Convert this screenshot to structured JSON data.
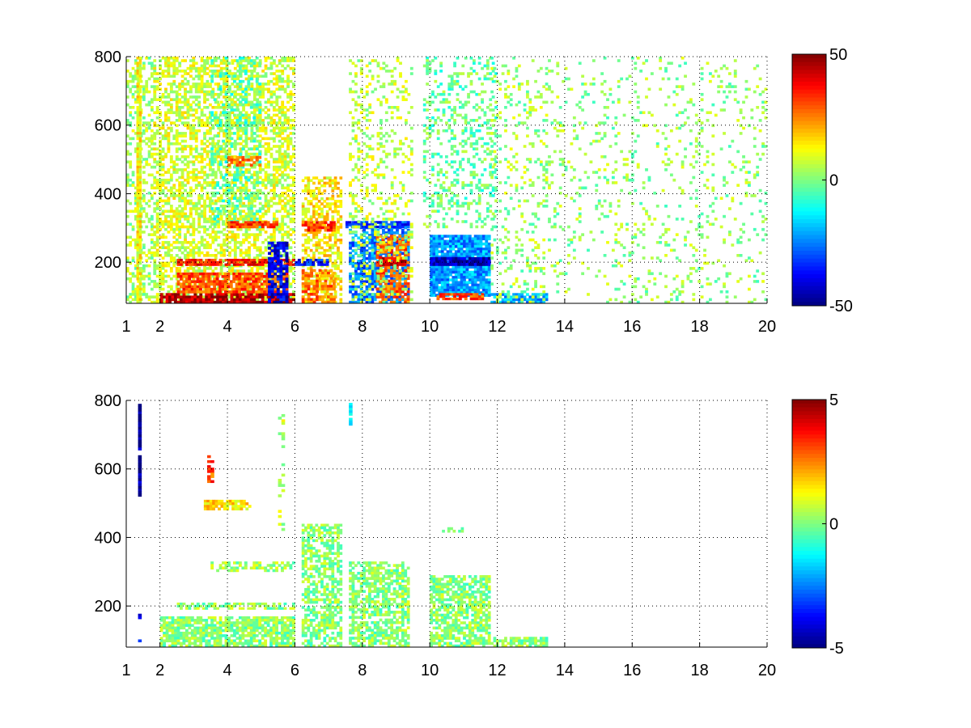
{
  "chart_data": [
    {
      "type": "heatmap",
      "title": "",
      "xlabel": "",
      "ylabel": "",
      "xlim": [
        1,
        20
      ],
      "ylim": [
        80,
        800
      ],
      "xticks": [
        "1",
        "2",
        "4",
        "6",
        "8",
        "10",
        "12",
        "14",
        "16",
        "18",
        "20"
      ],
      "yticks": [
        "200",
        "400",
        "600",
        "800"
      ],
      "grid": true,
      "colorbar": {
        "min": -50,
        "max": 50,
        "ticks": [
          "50",
          "0",
          "-50"
        ],
        "colormap": "jet"
      },
      "regions": [
        {
          "x": [
            1.0,
            1.8
          ],
          "y": [
            80,
            800
          ],
          "value": 4,
          "density": 0.35
        },
        {
          "x": [
            1.3,
            1.45
          ],
          "y": [
            80,
            800
          ],
          "value": 12,
          "density": 0.9
        },
        {
          "x": [
            1.8,
            6.0
          ],
          "y": [
            80,
            800
          ],
          "value": 8,
          "density": 0.55
        },
        {
          "x": [
            3.5,
            5.0
          ],
          "y": [
            300,
            800
          ],
          "value": -5,
          "density": 0.25
        },
        {
          "x": [
            2.0,
            6.0
          ],
          "y": [
            80,
            110
          ],
          "value": 46,
          "density": 0.9
        },
        {
          "x": [
            2.5,
            5.8
          ],
          "y": [
            110,
            170
          ],
          "value": 30,
          "density": 0.8
        },
        {
          "x": [
            2.5,
            6.0
          ],
          "y": [
            190,
            210
          ],
          "value": 35,
          "density": 0.8
        },
        {
          "x": [
            4.0,
            5.5
          ],
          "y": [
            300,
            320
          ],
          "value": 32,
          "density": 0.8
        },
        {
          "x": [
            4.0,
            5.0
          ],
          "y": [
            480,
            510
          ],
          "value": 25,
          "density": 0.6
        },
        {
          "x": [
            5.2,
            5.8
          ],
          "y": [
            80,
            260
          ],
          "value": -40,
          "density": 0.7
        },
        {
          "x": [
            6.2,
            7.4
          ],
          "y": [
            80,
            450
          ],
          "value": 14,
          "density": 0.55
        },
        {
          "x": [
            6.2,
            7.2
          ],
          "y": [
            290,
            320
          ],
          "value": 32,
          "density": 0.8
        },
        {
          "x": [
            6.0,
            7.0
          ],
          "y": [
            190,
            210
          ],
          "value": -35,
          "density": 0.8
        },
        {
          "x": [
            6.2,
            7.2
          ],
          "y": [
            80,
            180
          ],
          "value": 26,
          "density": 0.6
        },
        {
          "x": [
            7.6,
            9.4
          ],
          "y": [
            80,
            320
          ],
          "value": -25,
          "density": 0.7
        },
        {
          "x": [
            8.4,
            9.4
          ],
          "y": [
            80,
            280
          ],
          "value": 28,
          "density": 0.6
        },
        {
          "x": [
            7.5,
            9.4
          ],
          "y": [
            300,
            320
          ],
          "value": -34,
          "density": 0.8
        },
        {
          "x": [
            8.5,
            9.3
          ],
          "y": [
            190,
            215
          ],
          "value": 42,
          "density": 0.85
        },
        {
          "x": [
            7.6,
            9.5
          ],
          "y": [
            80,
            800
          ],
          "value": 6,
          "density": 0.2
        },
        {
          "x": [
            10.0,
            11.8
          ],
          "y": [
            100,
            280
          ],
          "value": -22,
          "density": 0.95
        },
        {
          "x": [
            10.0,
            11.8
          ],
          "y": [
            190,
            215
          ],
          "value": -45,
          "density": 0.95
        },
        {
          "x": [
            10.2,
            11.6
          ],
          "y": [
            90,
            110
          ],
          "value": 30,
          "density": 0.7
        },
        {
          "x": [
            9.8,
            12.0
          ],
          "y": [
            300,
            800
          ],
          "value": -2,
          "density": 0.25
        },
        {
          "x": [
            11.8,
            13.5
          ],
          "y": [
            80,
            110
          ],
          "value": -20,
          "density": 0.8
        },
        {
          "x": [
            11.8,
            13.5
          ],
          "y": [
            80,
            800
          ],
          "value": 3,
          "density": 0.15
        },
        {
          "x": [
            13.5,
            20.0
          ],
          "y": [
            80,
            800
          ],
          "value": 2,
          "density": 0.1
        }
      ]
    },
    {
      "type": "heatmap",
      "title": "",
      "xlabel": "",
      "ylabel": "",
      "xlim": [
        1,
        20
      ],
      "ylim": [
        80,
        800
      ],
      "xticks": [
        "1",
        "2",
        "4",
        "6",
        "8",
        "10",
        "12",
        "14",
        "16",
        "18",
        "20"
      ],
      "yticks": [
        "200",
        "400",
        "600",
        "800"
      ],
      "grid": true,
      "colorbar": {
        "min": -5,
        "max": 5,
        "ticks": [
          "5",
          "0",
          "-5"
        ],
        "colormap": "jet"
      },
      "regions": [
        {
          "x": [
            1.35,
            1.45
          ],
          "y": [
            520,
            790
          ],
          "value": -4.8,
          "density": 0.9
        },
        {
          "x": [
            1.35,
            1.45
          ],
          "y": [
            80,
            200
          ],
          "value": -3.5,
          "density": 0.2
        },
        {
          "x": [
            2.0,
            6.0
          ],
          "y": [
            80,
            170
          ],
          "value": 0.1,
          "density": 0.8
        },
        {
          "x": [
            2.5,
            6.0
          ],
          "y": [
            190,
            210
          ],
          "value": 0.2,
          "density": 0.6
        },
        {
          "x": [
            3.5,
            6.0
          ],
          "y": [
            300,
            330
          ],
          "value": 0.3,
          "density": 0.5
        },
        {
          "x": [
            3.3,
            4.7
          ],
          "y": [
            480,
            510
          ],
          "value": 1.5,
          "density": 0.75
        },
        {
          "x": [
            3.4,
            3.6
          ],
          "y": [
            560,
            640
          ],
          "value": 3.0,
          "density": 0.5
        },
        {
          "x": [
            5.5,
            5.7
          ],
          "y": [
            420,
            760
          ],
          "value": 0.5,
          "density": 0.3
        },
        {
          "x": [
            6.2,
            7.4
          ],
          "y": [
            80,
            440
          ],
          "value": 0.1,
          "density": 0.6
        },
        {
          "x": [
            7.6,
            9.4
          ],
          "y": [
            80,
            330
          ],
          "value": 0.1,
          "density": 0.65
        },
        {
          "x": [
            10.0,
            11.8
          ],
          "y": [
            80,
            290
          ],
          "value": 0.1,
          "density": 0.7
        },
        {
          "x": [
            10.2,
            11.0
          ],
          "y": [
            415,
            430
          ],
          "value": 0.1,
          "density": 0.5
        },
        {
          "x": [
            11.8,
            13.5
          ],
          "y": [
            80,
            110
          ],
          "value": 0.1,
          "density": 0.7
        },
        {
          "x": [
            7.6,
            7.7
          ],
          "y": [
            720,
            800
          ],
          "value": -1.0,
          "density": 0.5
        }
      ]
    }
  ]
}
